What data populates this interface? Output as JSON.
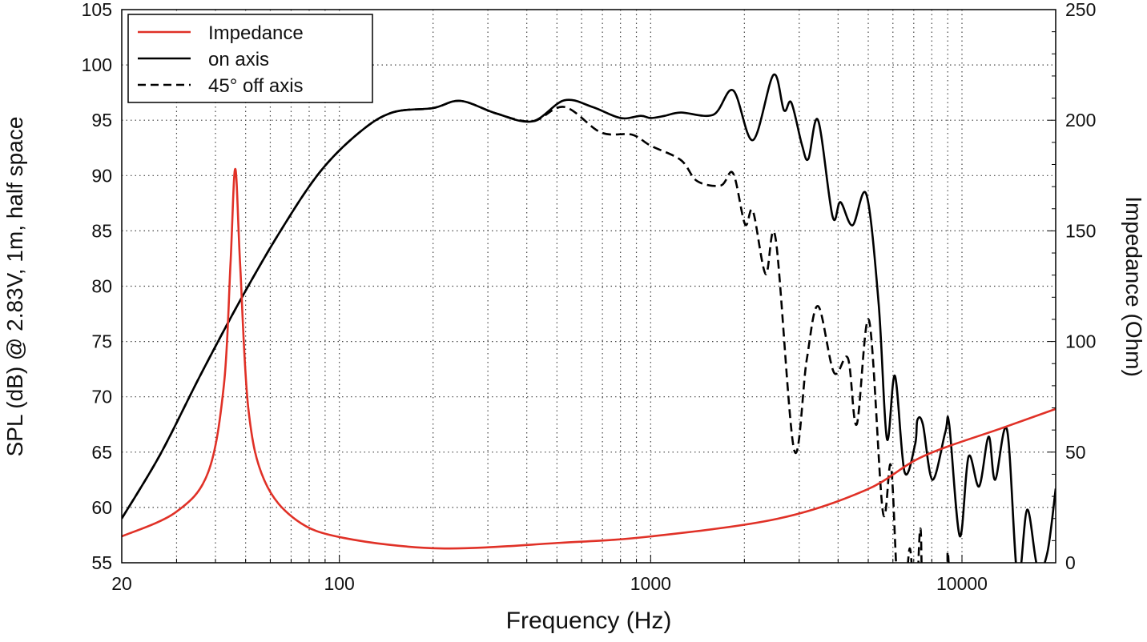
{
  "chart_data": {
    "type": "line",
    "xlabel": "Frequency (Hz)",
    "ylabel": "SPL (dB) @ 2.83V, 1m, half space",
    "y2label": "Impedance (Ohm)",
    "xscale": "log",
    "xlim": [
      20,
      20000
    ],
    "ylim": [
      55,
      105
    ],
    "y2lim": [
      0,
      250
    ],
    "grid": true,
    "legend_position": "top-left",
    "x_ticks": [
      "20",
      "100",
      "1000",
      "10000"
    ],
    "x_tick_values": [
      20,
      100,
      1000,
      10000
    ],
    "y_ticks": [
      "55",
      "60",
      "65",
      "70",
      "75",
      "80",
      "85",
      "90",
      "95",
      "100",
      "105"
    ],
    "y2_ticks": [
      "0",
      "50",
      "100",
      "150",
      "200",
      "250"
    ],
    "series": [
      {
        "name": "Impedance",
        "axis": "right",
        "color": "#e03127",
        "style": "solid",
        "x": [
          20,
          29.8,
          37.9,
          42.6,
          44.7,
          46.3,
          48,
          51,
          57.4,
          72.9,
          103.5,
          211,
          512,
          1000,
          2560,
          4920,
          7500,
          13400,
          20000
        ],
        "y": [
          11.9,
          22.8,
          40.9,
          80.7,
          135,
          178,
          135,
          69.8,
          37.3,
          19.2,
          11.2,
          6.5,
          9.0,
          11.9,
          19.9,
          32.9,
          48.1,
          60.8,
          69.5
        ]
      },
      {
        "name": "on axis",
        "axis": "left",
        "color": "#000000",
        "style": "solid",
        "x": [
          20,
          26.6,
          35.7,
          48,
          64.4,
          86.5,
          116,
          148,
          200,
          245,
          320,
          417,
          528,
          650,
          800,
          930,
          1000,
          1110,
          1250,
          1590,
          1840,
          2130,
          2480,
          2680,
          2830,
          3060,
          3210,
          3450,
          3840,
          4070,
          4450,
          4930,
          5400,
          5740,
          6090,
          6540,
          7070,
          7190,
          7490,
          8040,
          8840,
          9100,
          9840,
          10500,
          11350,
          12180,
          12780,
          13960,
          15100,
          16200,
          17500,
          18800,
          20000
        ],
        "y": [
          59.0,
          64.8,
          71.9,
          78.7,
          84.9,
          90.3,
          93.9,
          95.7,
          96.1,
          96.75,
          95.6,
          94.9,
          96.8,
          96.2,
          95.2,
          95.4,
          95.2,
          95.4,
          95.7,
          95.5,
          97.7,
          93.2,
          99.1,
          95.9,
          96.6,
          92.8,
          91.5,
          95.0,
          86.3,
          87.6,
          85.5,
          88.3,
          78.4,
          66.2,
          71.9,
          63.2,
          65.7,
          67.9,
          67.5,
          62.5,
          66.8,
          67.5,
          57.4,
          64.6,
          61.9,
          66.4,
          62.5,
          67.0,
          53.5,
          59.8,
          54.5,
          55.9,
          61.7
        ]
      },
      {
        "name": "45° off axis",
        "axis": "left",
        "color": "#000000",
        "style": "dashed",
        "x": [
          20,
          26.6,
          35.7,
          48,
          64.4,
          86.5,
          116,
          148,
          200,
          245,
          320,
          417,
          528,
          692,
          870,
          1000,
          1250,
          1410,
          1680,
          1840,
          2010,
          2130,
          2340,
          2520,
          2890,
          3170,
          3450,
          3880,
          4300,
          4590,
          5030,
          5570,
          5910,
          6200,
          6500,
          6800,
          7100,
          7350,
          7600,
          8840,
          9000,
          9200
        ],
        "y": [
          59.0,
          64.8,
          71.9,
          78.7,
          84.9,
          90.3,
          93.9,
          95.7,
          96.1,
          96.75,
          95.6,
          94.9,
          96.2,
          93.9,
          93.7,
          92.7,
          91.4,
          89.5,
          89.1,
          90.2,
          85.6,
          86.8,
          81.1,
          84.3,
          65.2,
          73.3,
          78.2,
          72.2,
          73.5,
          67.5,
          76.9,
          59.6,
          63.8,
          53,
          50,
          56.3,
          50,
          58.1,
          50,
          50,
          56,
          50
        ]
      }
    ]
  }
}
